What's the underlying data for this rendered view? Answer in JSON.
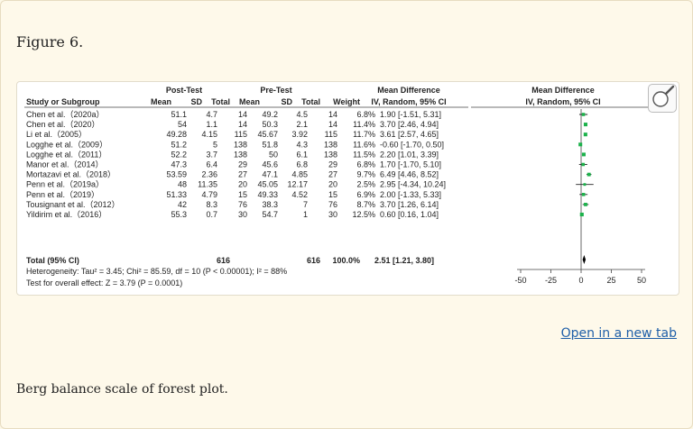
{
  "figure_label": "Figure 6.",
  "caption": "Berg balance scale of forest plot.",
  "open_link": "Open in a new tab",
  "colors": {
    "marker": "#1cb24b",
    "diamond": "#000000",
    "link": "#1f5fa8"
  },
  "chart_data": {
    "type": "forest",
    "headers": {
      "post_group": "Post-Test",
      "pre_group": "Pre-Test",
      "md_title": "Mean Difference",
      "md_sub": "IV, Random, 95% CI",
      "plot_title": "Mean Difference",
      "plot_sub": "IV, Random, 95% CI",
      "study": "Study or Subgroup",
      "mean1": "Mean",
      "sd1": "SD",
      "total1": "Total",
      "mean2": "Mean",
      "sd2": "SD",
      "total2": "Total",
      "weight": "Weight"
    },
    "studies": [
      {
        "name": "Chen et al.（2020a）",
        "m1": "51.1",
        "sd1": "4.7",
        "n1": "14",
        "m2": "49.2",
        "sd2": "4.5",
        "n2": "14",
        "weight": "6.8%",
        "ci_text": "1.90 [-1.51, 5.31]",
        "md": 1.9,
        "lo": -1.51,
        "hi": 5.31,
        "w": 6.8
      },
      {
        "name": "Chen et al.（2020）",
        "m1": "54",
        "sd1": "1.1",
        "n1": "14",
        "m2": "50.3",
        "sd2": "2.1",
        "n2": "14",
        "weight": "11.4%",
        "ci_text": "3.70 [2.46, 4.94]",
        "md": 3.7,
        "lo": 2.46,
        "hi": 4.94,
        "w": 11.4
      },
      {
        "name": "Li et al.（2005）",
        "m1": "49.28",
        "sd1": "4.15",
        "n1": "115",
        "m2": "45.67",
        "sd2": "3.92",
        "n2": "115",
        "weight": "11.7%",
        "ci_text": "3.61 [2.57, 4.65]",
        "md": 3.61,
        "lo": 2.57,
        "hi": 4.65,
        "w": 11.7
      },
      {
        "name": "Logghe et al.（2009）",
        "m1": "51.2",
        "sd1": "5",
        "n1": "138",
        "m2": "51.8",
        "sd2": "4.3",
        "n2": "138",
        "weight": "11.6%",
        "ci_text": "-0.60 [-1.70, 0.50]",
        "md": -0.6,
        "lo": -1.7,
        "hi": 0.5,
        "w": 11.6
      },
      {
        "name": "Logghe et al.（2011）",
        "m1": "52.2",
        "sd1": "3.7",
        "n1": "138",
        "m2": "50",
        "sd2": "6.1",
        "n2": "138",
        "weight": "11.5%",
        "ci_text": "2.20 [1.01, 3.39]",
        "md": 2.2,
        "lo": 1.01,
        "hi": 3.39,
        "w": 11.5
      },
      {
        "name": "Manor et al.（2014）",
        "m1": "47.3",
        "sd1": "6.4",
        "n1": "29",
        "m2": "45.6",
        "sd2": "6.8",
        "n2": "29",
        "weight": "6.8%",
        "ci_text": "1.70 [-1.70, 5.10]",
        "md": 1.7,
        "lo": -1.7,
        "hi": 5.1,
        "w": 6.8
      },
      {
        "name": "Mortazavi et al.（2018）",
        "m1": "53.59",
        "sd1": "2.36",
        "n1": "27",
        "m2": "47.1",
        "sd2": "4.85",
        "n2": "27",
        "weight": "9.7%",
        "ci_text": "6.49 [4.46, 8.52]",
        "md": 6.49,
        "lo": 4.46,
        "hi": 8.52,
        "w": 9.7
      },
      {
        "name": "Penn et al.（2019a）",
        "m1": "48",
        "sd1": "11.35",
        "n1": "20",
        "m2": "45.05",
        "sd2": "12.17",
        "n2": "20",
        "weight": "2.5%",
        "ci_text": "2.95 [-4.34, 10.24]",
        "md": 2.95,
        "lo": -4.34,
        "hi": 10.24,
        "w": 2.5
      },
      {
        "name": "Penn et al.（2019）",
        "m1": "51.33",
        "sd1": "4.79",
        "n1": "15",
        "m2": "49.33",
        "sd2": "4.52",
        "n2": "15",
        "weight": "6.9%",
        "ci_text": "2.00 [-1.33, 5.33]",
        "md": 2.0,
        "lo": -1.33,
        "hi": 5.33,
        "w": 6.9
      },
      {
        "name": "Tousignant et al.（2012）",
        "m1": "42",
        "sd1": "8.3",
        "n1": "76",
        "m2": "38.3",
        "sd2": "7",
        "n2": "76",
        "weight": "8.7%",
        "ci_text": "3.70 [1.26, 6.14]",
        "md": 3.7,
        "lo": 1.26,
        "hi": 6.14,
        "w": 8.7
      },
      {
        "name": "Yildirim et al.（2016）",
        "m1": "55.3",
        "sd1": "0.7",
        "n1": "30",
        "m2": "54.7",
        "sd2": "1",
        "n2": "30",
        "weight": "12.5%",
        "ci_text": "0.60 [0.16, 1.04]",
        "md": 0.6,
        "lo": 0.16,
        "hi": 1.04,
        "w": 12.5
      }
    ],
    "total": {
      "name": "Total (95% CI)",
      "n1": "616",
      "n2": "616",
      "weight": "100.0%",
      "ci_text": "2.51 [1.21, 3.80]",
      "md": 2.51,
      "lo": 1.21,
      "hi": 3.8
    },
    "heterogeneity": "Heterogeneity: Tau² = 3.45; Chi² = 85.59, df = 10 (P < 0.00001); I² = 88%",
    "overall_effect": "Test for overall effect: Z = 3.79 (P = 0.0001)",
    "xlim": [
      -50,
      50
    ],
    "xticks": [
      -50,
      -25,
      0,
      25,
      50
    ]
  }
}
